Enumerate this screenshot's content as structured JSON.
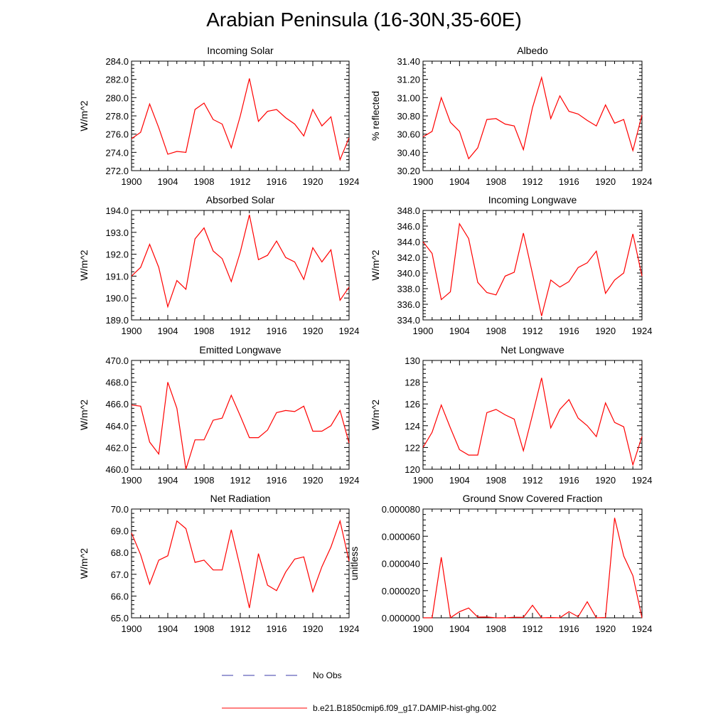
{
  "page": {
    "title": "Arabian Peninsula (16-30N,35-60E)"
  },
  "legend": {
    "entries": [
      {
        "label": "No Obs",
        "color": "#3a3aa8",
        "dash": "dashed"
      },
      {
        "label": "b.e21.B1850cmip6.f09_g17.DAMIP-hist-ghg.002",
        "color": "#ff0000",
        "dash": "solid"
      }
    ]
  },
  "chart_data": [
    {
      "type": "line",
      "title": "Incoming Solar",
      "ylabel": "W/m^2",
      "x": [
        1900,
        1901,
        1902,
        1903,
        1904,
        1905,
        1906,
        1907,
        1908,
        1909,
        1910,
        1911,
        1912,
        1913,
        1914,
        1915,
        1916,
        1917,
        1918,
        1919,
        1920,
        1921,
        1922,
        1923,
        1924
      ],
      "xlim": [
        1900,
        1924
      ],
      "xticks": [
        "1900",
        "1904",
        "1908",
        "1912",
        "1916",
        "1920",
        "1924"
      ],
      "ylim": [
        272,
        284
      ],
      "yticks": [
        "272.0",
        "274.0",
        "276.0",
        "278.0",
        "280.0",
        "282.0",
        "284.0"
      ],
      "series": [
        {
          "name": "b.e21.B1850cmip6.f09_g17.DAMIP-hist-ghg.002",
          "color": "#ff0000",
          "values": [
            275.5,
            276.2,
            279.3,
            276.7,
            273.8,
            274.1,
            274.0,
            278.7,
            279.4,
            277.6,
            277.1,
            274.5,
            278.0,
            282.1,
            277.4,
            278.5,
            278.7,
            277.8,
            277.1,
            275.8,
            278.7,
            276.9,
            277.9,
            273.2,
            275.6
          ]
        }
      ]
    },
    {
      "type": "line",
      "title": "Albedo",
      "ylabel": "% reflected",
      "x": [
        1900,
        1901,
        1902,
        1903,
        1904,
        1905,
        1906,
        1907,
        1908,
        1909,
        1910,
        1911,
        1912,
        1913,
        1914,
        1915,
        1916,
        1917,
        1918,
        1919,
        1920,
        1921,
        1922,
        1923,
        1924
      ],
      "xlim": [
        1900,
        1924
      ],
      "xticks": [
        "1900",
        "1904",
        "1908",
        "1912",
        "1916",
        "1920",
        "1924"
      ],
      "ylim": [
        30.2,
        31.4
      ],
      "yticks": [
        "30.20",
        "30.40",
        "30.60",
        "30.80",
        "31.00",
        "31.20",
        "31.40"
      ],
      "series": [
        {
          "name": "b.e21.B1850cmip6.f09_g17.DAMIP-hist-ghg.002",
          "color": "#ff0000",
          "values": [
            30.57,
            30.63,
            31.0,
            30.73,
            30.63,
            30.33,
            30.45,
            30.76,
            30.77,
            30.71,
            30.69,
            30.43,
            30.89,
            31.22,
            30.77,
            31.02,
            30.85,
            30.82,
            30.75,
            30.69,
            30.92,
            30.72,
            30.76,
            30.42,
            30.81
          ]
        }
      ]
    },
    {
      "type": "line",
      "title": "Absorbed Solar",
      "ylabel": "W/m^2",
      "x": [
        1900,
        1901,
        1902,
        1903,
        1904,
        1905,
        1906,
        1907,
        1908,
        1909,
        1910,
        1911,
        1912,
        1913,
        1914,
        1915,
        1916,
        1917,
        1918,
        1919,
        1920,
        1921,
        1922,
        1923,
        1924
      ],
      "xlim": [
        1900,
        1924
      ],
      "xticks": [
        "1900",
        "1904",
        "1908",
        "1912",
        "1916",
        "1920",
        "1924"
      ],
      "ylim": [
        189,
        194
      ],
      "yticks": [
        "189.0",
        "190.0",
        "191.0",
        "192.0",
        "193.0",
        "194.0"
      ],
      "series": [
        {
          "name": "b.e21.B1850cmip6.f09_g17.DAMIP-hist-ghg.002",
          "color": "#ff0000",
          "values": [
            191.0,
            191.4,
            192.45,
            191.4,
            189.6,
            190.8,
            190.4,
            192.7,
            193.2,
            192.15,
            191.8,
            190.75,
            192.1,
            193.8,
            191.75,
            191.95,
            192.6,
            191.85,
            191.65,
            190.85,
            192.3,
            191.65,
            192.2,
            189.9,
            190.5
          ]
        }
      ]
    },
    {
      "type": "line",
      "title": "Incoming Longwave",
      "ylabel": "W/m^2",
      "x": [
        1900,
        1901,
        1902,
        1903,
        1904,
        1905,
        1906,
        1907,
        1908,
        1909,
        1910,
        1911,
        1912,
        1913,
        1914,
        1915,
        1916,
        1917,
        1918,
        1919,
        1920,
        1921,
        1922,
        1923,
        1924
      ],
      "xlim": [
        1900,
        1924
      ],
      "xticks": [
        "1900",
        "1904",
        "1908",
        "1912",
        "1916",
        "1920",
        "1924"
      ],
      "ylim": [
        334,
        348
      ],
      "yticks": [
        "334.0",
        "336.0",
        "338.0",
        "340.0",
        "342.0",
        "344.0",
        "346.0",
        "348.0"
      ],
      "series": [
        {
          "name": "b.e21.B1850cmip6.f09_g17.DAMIP-hist-ghg.002",
          "color": "#ff0000",
          "values": [
            344.0,
            342.5,
            336.6,
            337.6,
            346.3,
            344.4,
            338.8,
            337.5,
            337.2,
            339.6,
            340.1,
            345.1,
            339.9,
            334.5,
            339.1,
            338.2,
            338.9,
            340.7,
            341.3,
            342.8,
            337.4,
            339.1,
            340.0,
            345.0,
            339.6
          ]
        }
      ]
    },
    {
      "type": "line",
      "title": "Emitted Longwave",
      "ylabel": "W/m^2",
      "x": [
        1900,
        1901,
        1902,
        1903,
        1904,
        1905,
        1906,
        1907,
        1908,
        1909,
        1910,
        1911,
        1912,
        1913,
        1914,
        1915,
        1916,
        1917,
        1918,
        1919,
        1920,
        1921,
        1922,
        1923,
        1924
      ],
      "xlim": [
        1900,
        1924
      ],
      "xticks": [
        "1900",
        "1904",
        "1908",
        "1912",
        "1916",
        "1920",
        "1924"
      ],
      "ylim": [
        460,
        470
      ],
      "yticks": [
        "460.0",
        "462.0",
        "464.0",
        "466.0",
        "468.0",
        "470.0"
      ],
      "series": [
        {
          "name": "b.e21.B1850cmip6.f09_g17.DAMIP-hist-ghg.002",
          "color": "#ff0000",
          "values": [
            465.9,
            465.8,
            462.5,
            461.4,
            468.0,
            465.6,
            460.0,
            462.7,
            462.7,
            464.5,
            464.7,
            466.8,
            464.9,
            462.9,
            462.9,
            463.6,
            465.2,
            465.4,
            465.3,
            465.8,
            463.5,
            463.5,
            464.0,
            465.4,
            462.4
          ]
        }
      ]
    },
    {
      "type": "line",
      "title": "Net Longwave",
      "ylabel": "W/m^2",
      "x": [
        1900,
        1901,
        1902,
        1903,
        1904,
        1905,
        1906,
        1907,
        1908,
        1909,
        1910,
        1911,
        1912,
        1913,
        1914,
        1915,
        1916,
        1917,
        1918,
        1919,
        1920,
        1921,
        1922,
        1923,
        1924
      ],
      "xlim": [
        1900,
        1924
      ],
      "xticks": [
        "1900",
        "1904",
        "1908",
        "1912",
        "1916",
        "1920",
        "1924"
      ],
      "ylim": [
        120,
        130
      ],
      "yticks": [
        "120",
        "122",
        "124",
        "126",
        "128",
        "130"
      ],
      "series": [
        {
          "name": "b.e21.B1850cmip6.f09_g17.DAMIP-hist-ghg.002",
          "color": "#ff0000",
          "values": [
            122.0,
            123.4,
            125.9,
            123.8,
            121.8,
            121.3,
            121.3,
            125.2,
            125.5,
            125.0,
            124.6,
            121.7,
            125.0,
            128.4,
            123.8,
            125.5,
            126.4,
            124.7,
            124.0,
            123.0,
            126.1,
            124.3,
            123.9,
            120.4,
            123.0
          ]
        }
      ]
    },
    {
      "type": "line",
      "title": "Net Radiation",
      "ylabel": "W/m^2",
      "x": [
        1900,
        1901,
        1902,
        1903,
        1904,
        1905,
        1906,
        1907,
        1908,
        1909,
        1910,
        1911,
        1912,
        1913,
        1914,
        1915,
        1916,
        1917,
        1918,
        1919,
        1920,
        1921,
        1922,
        1923,
        1924
      ],
      "xlim": [
        1900,
        1924
      ],
      "xticks": [
        "1900",
        "1904",
        "1908",
        "1912",
        "1916",
        "1920",
        "1924"
      ],
      "ylim": [
        65,
        70
      ],
      "yticks": [
        "65.0",
        "66.0",
        "67.0",
        "68.0",
        "69.0",
        "70.0"
      ],
      "series": [
        {
          "name": "b.e21.B1850cmip6.f09_g17.DAMIP-hist-ghg.002",
          "color": "#ff0000",
          "values": [
            68.9,
            67.9,
            66.55,
            67.65,
            67.85,
            69.45,
            69.1,
            67.55,
            67.65,
            67.2,
            67.2,
            69.05,
            67.3,
            65.45,
            67.95,
            66.5,
            66.25,
            67.1,
            67.7,
            67.8,
            66.2,
            67.35,
            68.25,
            69.45,
            67.6
          ]
        }
      ]
    },
    {
      "type": "line",
      "title": "Ground Snow Covered Fraction",
      "ylabel": "unitless",
      "x": [
        1900,
        1901,
        1902,
        1903,
        1904,
        1905,
        1906,
        1907,
        1908,
        1909,
        1910,
        1911,
        1912,
        1913,
        1914,
        1915,
        1916,
        1917,
        1918,
        1919,
        1920,
        1921,
        1922,
        1923,
        1924
      ],
      "xlim": [
        1900,
        1924
      ],
      "xticks": [
        "1900",
        "1904",
        "1908",
        "1912",
        "1916",
        "1920",
        "1924"
      ],
      "ylim": [
        0,
        8e-05
      ],
      "yticks": [
        "0.000000",
        "0.000020",
        "0.000040",
        "0.000060",
        "0.000080"
      ],
      "series": [
        {
          "name": "b.e21.B1850cmip6.f09_g17.DAMIP-hist-ghg.002",
          "color": "#ff0000",
          "values": [
            0,
            0,
            4.45e-05,
            0,
            4.5e-06,
            7.2e-06,
            5e-07,
            6e-07,
            0,
            0,
            4e-07,
            3e-07,
            9.2e-06,
            0,
            2e-07,
            0,
            4.5e-06,
            8e-07,
            1.18e-05,
            0,
            2e-07,
            7.35e-05,
            4.55e-05,
            3.1e-05,
            0
          ]
        }
      ]
    }
  ]
}
